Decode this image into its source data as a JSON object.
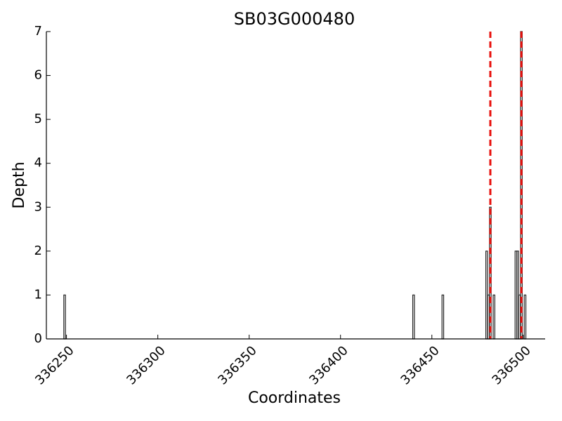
{
  "chart_data": {
    "type": "bar",
    "title": "SB03G000480",
    "x_label": "Coordinates",
    "y_label": "Depth",
    "x": [
      336249,
      336440,
      336456,
      336480,
      336481,
      336482,
      336484,
      336496,
      336497,
      336498,
      336499,
      336501
    ],
    "values": [
      1,
      1,
      1,
      2,
      1,
      3,
      1,
      2,
      2,
      1,
      7,
      1
    ],
    "color": "#222222",
    "vlines": [
      336482,
      336499
    ],
    "vline_color": "#e8100c",
    "xlim": [
      336239,
      336512
    ],
    "xticks": [
      336250,
      336300,
      336350,
      336400,
      336450,
      336500
    ],
    "ylim": [
      0,
      7
    ],
    "yticks": [
      0,
      1,
      2,
      3,
      4,
      5,
      6,
      7
    ],
    "grid": false
  }
}
